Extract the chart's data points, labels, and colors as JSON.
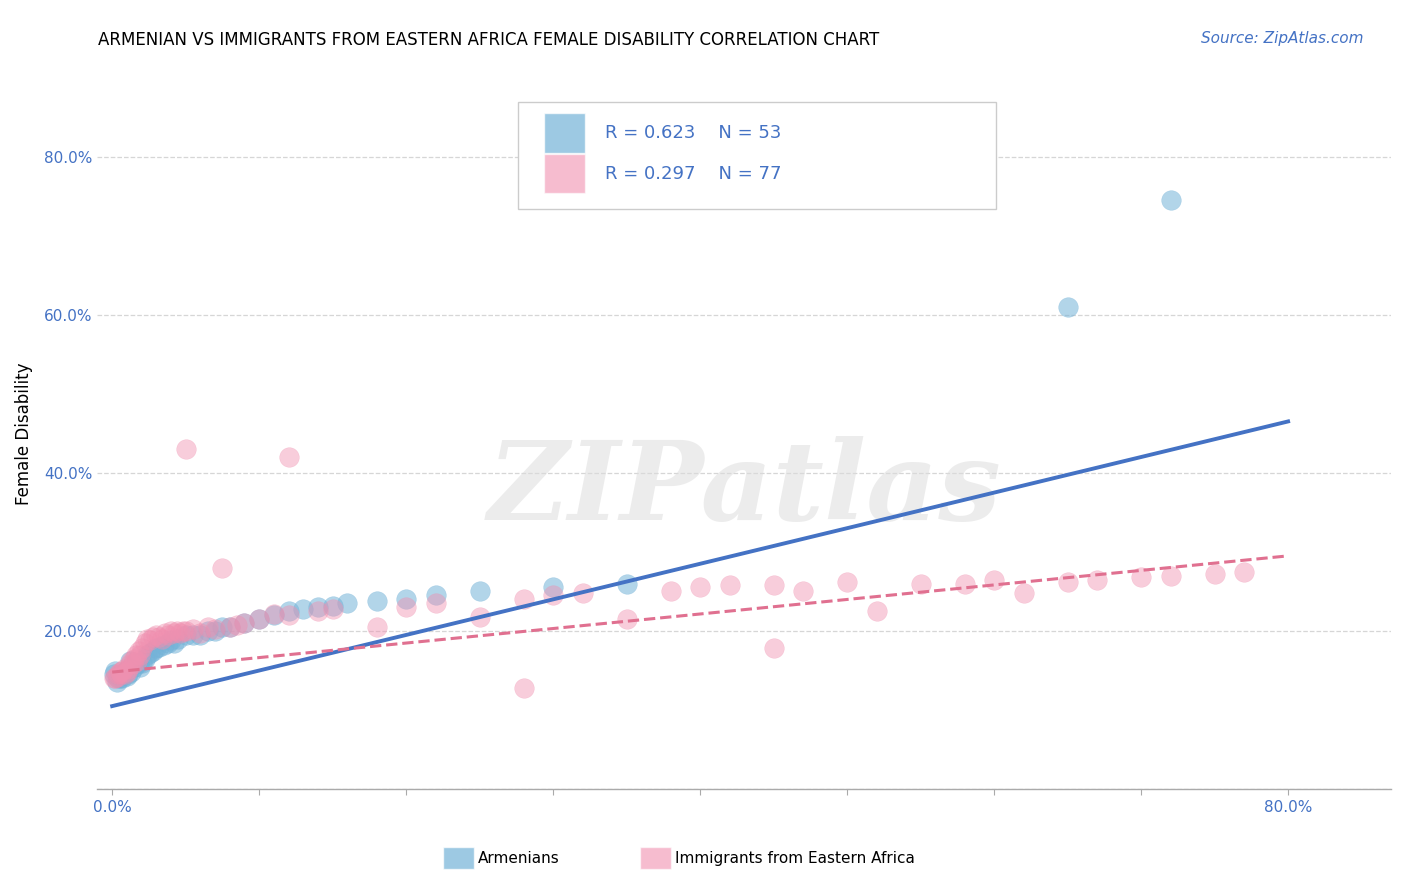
{
  "title": "ARMENIAN VS IMMIGRANTS FROM EASTERN AFRICA FEMALE DISABILITY CORRELATION CHART",
  "source": "Source: ZipAtlas.com",
  "ylabel": "Female Disability",
  "legend_entries": [
    {
      "label": "Armenians",
      "color": "#a8c4e0",
      "R": 0.623,
      "N": 53
    },
    {
      "label": "Immigrants from Eastern Africa",
      "color": "#f4a0b0",
      "R": 0.297,
      "N": 77
    }
  ],
  "armenian_scatter": [
    [
      0.001,
      0.145
    ],
    [
      0.002,
      0.15
    ],
    [
      0.003,
      0.135
    ],
    [
      0.004,
      0.14
    ],
    [
      0.005,
      0.14
    ],
    [
      0.006,
      0.145
    ],
    [
      0.007,
      0.14
    ],
    [
      0.008,
      0.145
    ],
    [
      0.009,
      0.148
    ],
    [
      0.01,
      0.143
    ],
    [
      0.011,
      0.145
    ],
    [
      0.012,
      0.162
    ],
    [
      0.013,
      0.148
    ],
    [
      0.015,
      0.155
    ],
    [
      0.016,
      0.158
    ],
    [
      0.017,
      0.16
    ],
    [
      0.018,
      0.16
    ],
    [
      0.019,
      0.155
    ],
    [
      0.02,
      0.16
    ],
    [
      0.022,
      0.165
    ],
    [
      0.024,
      0.17
    ],
    [
      0.026,
      0.172
    ],
    [
      0.028,
      0.175
    ],
    [
      0.03,
      0.178
    ],
    [
      0.032,
      0.18
    ],
    [
      0.035,
      0.182
    ],
    [
      0.038,
      0.185
    ],
    [
      0.04,
      0.188
    ],
    [
      0.042,
      0.185
    ],
    [
      0.045,
      0.19
    ],
    [
      0.05,
      0.195
    ],
    [
      0.055,
      0.195
    ],
    [
      0.06,
      0.195
    ],
    [
      0.065,
      0.2
    ],
    [
      0.07,
      0.2
    ],
    [
      0.075,
      0.205
    ],
    [
      0.08,
      0.205
    ],
    [
      0.09,
      0.21
    ],
    [
      0.1,
      0.215
    ],
    [
      0.11,
      0.22
    ],
    [
      0.12,
      0.225
    ],
    [
      0.13,
      0.228
    ],
    [
      0.14,
      0.23
    ],
    [
      0.15,
      0.232
    ],
    [
      0.16,
      0.235
    ],
    [
      0.18,
      0.238
    ],
    [
      0.2,
      0.24
    ],
    [
      0.22,
      0.245
    ],
    [
      0.25,
      0.25
    ],
    [
      0.3,
      0.255
    ],
    [
      0.35,
      0.26
    ],
    [
      0.65,
      0.61
    ],
    [
      0.72,
      0.745
    ]
  ],
  "eastern_africa_scatter": [
    [
      0.001,
      0.14
    ],
    [
      0.002,
      0.14
    ],
    [
      0.003,
      0.142
    ],
    [
      0.004,
      0.145
    ],
    [
      0.005,
      0.148
    ],
    [
      0.006,
      0.145
    ],
    [
      0.007,
      0.15
    ],
    [
      0.008,
      0.152
    ],
    [
      0.009,
      0.145
    ],
    [
      0.01,
      0.148
    ],
    [
      0.011,
      0.152
    ],
    [
      0.012,
      0.158
    ],
    [
      0.013,
      0.162
    ],
    [
      0.014,
      0.158
    ],
    [
      0.015,
      0.165
    ],
    [
      0.016,
      0.17
    ],
    [
      0.017,
      0.162
    ],
    [
      0.018,
      0.175
    ],
    [
      0.019,
      0.17
    ],
    [
      0.02,
      0.178
    ],
    [
      0.022,
      0.185
    ],
    [
      0.024,
      0.19
    ],
    [
      0.026,
      0.188
    ],
    [
      0.028,
      0.192
    ],
    [
      0.03,
      0.195
    ],
    [
      0.032,
      0.192
    ],
    [
      0.034,
      0.19
    ],
    [
      0.036,
      0.198
    ],
    [
      0.038,
      0.195
    ],
    [
      0.04,
      0.2
    ],
    [
      0.042,
      0.198
    ],
    [
      0.044,
      0.2
    ],
    [
      0.046,
      0.198
    ],
    [
      0.048,
      0.2
    ],
    [
      0.05,
      0.2
    ],
    [
      0.055,
      0.202
    ],
    [
      0.06,
      0.198
    ],
    [
      0.065,
      0.205
    ],
    [
      0.07,
      0.202
    ],
    [
      0.075,
      0.28
    ],
    [
      0.08,
      0.205
    ],
    [
      0.085,
      0.208
    ],
    [
      0.09,
      0.21
    ],
    [
      0.1,
      0.215
    ],
    [
      0.11,
      0.222
    ],
    [
      0.12,
      0.22
    ],
    [
      0.14,
      0.225
    ],
    [
      0.15,
      0.228
    ],
    [
      0.18,
      0.205
    ],
    [
      0.2,
      0.23
    ],
    [
      0.22,
      0.235
    ],
    [
      0.25,
      0.218
    ],
    [
      0.28,
      0.24
    ],
    [
      0.3,
      0.245
    ],
    [
      0.32,
      0.248
    ],
    [
      0.35,
      0.215
    ],
    [
      0.38,
      0.25
    ],
    [
      0.4,
      0.255
    ],
    [
      0.42,
      0.258
    ],
    [
      0.45,
      0.258
    ],
    [
      0.47,
      0.25
    ],
    [
      0.5,
      0.262
    ],
    [
      0.52,
      0.225
    ],
    [
      0.55,
      0.26
    ],
    [
      0.58,
      0.26
    ],
    [
      0.6,
      0.265
    ],
    [
      0.62,
      0.248
    ],
    [
      0.65,
      0.262
    ],
    [
      0.67,
      0.265
    ],
    [
      0.7,
      0.268
    ],
    [
      0.72,
      0.27
    ],
    [
      0.75,
      0.272
    ],
    [
      0.77,
      0.275
    ],
    [
      0.05,
      0.43
    ],
    [
      0.12,
      0.42
    ],
    [
      0.28,
      0.128
    ],
    [
      0.45,
      0.178
    ]
  ],
  "blue_line": {
    "x0": 0.0,
    "y0": 0.105,
    "x1": 0.8,
    "y1": 0.465
  },
  "pink_line": {
    "x0": 0.0,
    "y0": 0.148,
    "x1": 0.8,
    "y1": 0.295
  },
  "ylim": [
    0.0,
    0.9
  ],
  "xlim": [
    -0.01,
    0.87
  ],
  "yticks": [
    0.0,
    0.2,
    0.4,
    0.6,
    0.8
  ],
  "ytick_labels": [
    "",
    "20.0%",
    "40.0%",
    "60.0%",
    "80.0%"
  ],
  "watermark_text": "ZIPatlas",
  "blue_dot_color": "#74b3d8",
  "pink_dot_color": "#f090b0",
  "blue_line_color": "#4472c4",
  "pink_line_color": "#e07090",
  "grid_color": "#cccccc",
  "title_fontsize": 12,
  "source_fontsize": 11,
  "label_fontsize": 12,
  "tick_fontsize": 11
}
